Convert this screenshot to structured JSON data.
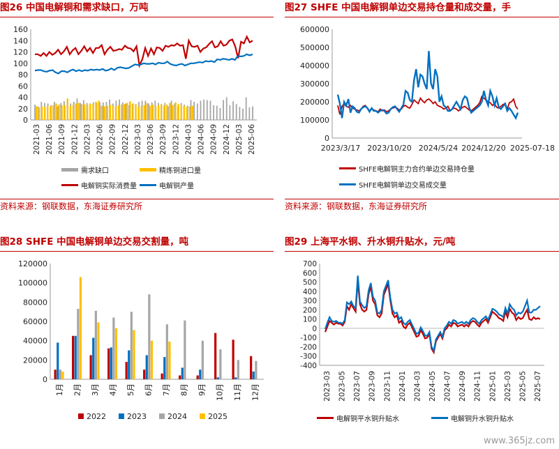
{
  "chart_data": [
    {
      "type": "bar+line",
      "title": "图26 中国电解铜和需求缺口，万吨",
      "source": "资料来源：钢联数据，东海证券研究所",
      "ylim": [
        0,
        160
      ],
      "yticks": [
        0,
        20,
        40,
        60,
        80,
        100,
        120,
        140,
        160
      ],
      "xlabels": [
        "2021-03",
        "2021-06",
        "2021-09",
        "2021-12",
        "2022-03",
        "2022-06",
        "2022-09",
        "2022-12",
        "2023-03",
        "2023-06",
        "2023-09",
        "2023-12",
        "2024-03",
        "2024-06",
        "2024-09",
        "2024-12",
        "2025-03",
        "2025-06"
      ],
      "series": [
        {
          "name": "需求缺口",
          "kind": "bar",
          "color": "#a6a6a6",
          "values": [
            27,
            24,
            32,
            30,
            29,
            26,
            32,
            24,
            30,
            33,
            30,
            29,
            32,
            38,
            30,
            35,
            30,
            29,
            31,
            30,
            31,
            31,
            32,
            36,
            29,
            34,
            36,
            31,
            29,
            26,
            29,
            27,
            32,
            34,
            34,
            29,
            31,
            34,
            30,
            24,
            30,
            24,
            34,
            29,
            24,
            30,
            27,
            25,
            35,
            32,
            29,
            34,
            36,
            35,
            34,
            26,
            25,
            21,
            35,
            40,
            26,
            33,
            28,
            23,
            20,
            40,
            22,
            24
          ]
        },
        {
          "name": "精炼铜进口量",
          "kind": "bar",
          "color": "#ffc000",
          "values": [
            24,
            22,
            24,
            23,
            25,
            24,
            26,
            29,
            27,
            26,
            26,
            38,
            24,
            27,
            29,
            30,
            28,
            27,
            27,
            29,
            28,
            32,
            34,
            25,
            24,
            25,
            27,
            25,
            24,
            26,
            27,
            28,
            30,
            33,
            29,
            28,
            23,
            25,
            26,
            30,
            25,
            27,
            24,
            26,
            28,
            25,
            27,
            30,
            26,
            31,
            28,
            27,
            25,
            23,
            24,
            25
          ]
        },
        {
          "name": "电解铜实际消费量",
          "kind": "line",
          "color": "#c00000",
          "values": [
            116,
            116,
            113,
            118,
            113,
            120,
            115,
            118,
            124,
            116,
            121,
            129,
            116,
            123,
            127,
            116,
            122,
            130,
            121,
            127,
            118,
            127,
            127,
            132,
            116,
            124,
            129,
            122,
            123,
            125,
            124,
            131,
            127,
            126,
            121,
            130,
            96,
            107,
            127,
            113,
            126,
            116,
            128,
            127,
            122,
            131,
            129,
            132,
            131,
            135,
            131,
            132,
            108,
            140,
            130,
            129,
            131,
            120,
            126,
            128,
            134,
            139,
            128,
            130,
            139,
            131,
            133,
            140,
            142,
            130,
            109,
            138,
            135,
            147,
            137,
            140
          ]
        },
        {
          "name": "电解铜产量",
          "kind": "line",
          "color": "#0070c0",
          "values": [
            87,
            88,
            88,
            86,
            85,
            87,
            88,
            84,
            82,
            86,
            86,
            84,
            87,
            89,
            86,
            88,
            86,
            88,
            87,
            89,
            88,
            89,
            88,
            90,
            87,
            88,
            91,
            88,
            92,
            93,
            92,
            91,
            92,
            95,
            98,
            97,
            98,
            100,
            99,
            99,
            100,
            98,
            101,
            100,
            100,
            103,
            99,
            97,
            96,
            98,
            99,
            96,
            98,
            100,
            100,
            101,
            102,
            101,
            104,
            103,
            104,
            102,
            107,
            106,
            108,
            107,
            106,
            108,
            106,
            113,
            112,
            113,
            116,
            114,
            116
          ]
        }
      ]
    },
    {
      "type": "line",
      "title": "图27 SHFE 中国电解铜单边交易持仓量和成交量，手",
      "source": "资料来源：钢联数据，东海证券研究所",
      "ylim": [
        0,
        600000
      ],
      "yticks": [
        0,
        100000,
        200000,
        300000,
        400000,
        500000,
        600000
      ],
      "xlabels": [
        "2023/3/17",
        "2023/10/20",
        "2024/5/24",
        "2024/12/20",
        "2025-07-18"
      ],
      "series": [
        {
          "name": "SHFE电解铜主力合约单边交易持仓量",
          "color": "#c00000",
          "values": [
            180000,
            130000,
            175000,
            190000,
            175000,
            170000,
            180000,
            165000,
            160000,
            155000,
            150000,
            160000,
            175000,
            180000,
            165000,
            150000,
            160000,
            155000,
            150000,
            145000,
            160000,
            150000,
            155000,
            145000,
            150000,
            160000,
            165000,
            170000,
            165000,
            155000,
            160000,
            175000,
            180000,
            170000,
            165000,
            185000,
            210000,
            200000,
            190000,
            220000,
            205000,
            195000,
            210000,
            215000,
            205000,
            190000,
            200000,
            180000,
            175000,
            170000,
            160000,
            165000,
            175000,
            150000,
            160000,
            165000,
            160000,
            150000,
            160000,
            170000,
            175000,
            165000,
            155000,
            150000,
            160000,
            170000,
            180000,
            195000,
            230000,
            220000,
            210000,
            200000,
            195000,
            180000,
            190000,
            170000,
            165000,
            175000,
            185000,
            190000,
            160000,
            195000,
            200000,
            215000,
            175000,
            160000
          ]
        },
        {
          "name": "SHFE电解铜单边交易成交量",
          "color": "#0070c0",
          "values": [
            240000,
            190000,
            110000,
            200000,
            180000,
            215000,
            140000,
            175000,
            165000,
            145000,
            140000,
            160000,
            170000,
            175000,
            165000,
            145000,
            165000,
            150000,
            150000,
            140000,
            150000,
            155000,
            150000,
            135000,
            140000,
            160000,
            170000,
            175000,
            160000,
            145000,
            165000,
            185000,
            260000,
            250000,
            210000,
            200000,
            320000,
            380000,
            280000,
            350000,
            340000,
            300000,
            270000,
            480000,
            300000,
            270000,
            380000,
            340000,
            200000,
            230000,
            180000,
            170000,
            150000,
            150000,
            160000,
            180000,
            200000,
            180000,
            160000,
            210000,
            230000,
            220000,
            170000,
            140000,
            150000,
            160000,
            170000,
            180000,
            200000,
            260000,
            210000,
            180000,
            260000,
            230000,
            180000,
            220000,
            170000,
            160000,
            175000,
            190000,
            150000,
            165000,
            150000,
            130000,
            110000,
            140000
          ]
        }
      ]
    },
    {
      "type": "bar",
      "title": "图28 SHFE 中国电解铜单边交易交割量，吨",
      "ylim": [
        0,
        120000
      ],
      "yticks": [
        0,
        20000,
        40000,
        60000,
        80000,
        100000,
        120000
      ],
      "categories": [
        "1月",
        "2月",
        "3月",
        "4月",
        "5月",
        "6月",
        "7月",
        "8月",
        "9月",
        "10月",
        "11月",
        "12月"
      ],
      "series": [
        {
          "name": "2022",
          "color": "#c00000",
          "values": [
            10000,
            45000,
            25000,
            32000,
            18000,
            10000,
            6000,
            4000,
            4000,
            48000,
            41000,
            24000
          ]
        },
        {
          "name": "2023",
          "color": "#0070c0",
          "values": [
            38000,
            45000,
            43000,
            33000,
            30000,
            25000,
            23000,
            12000,
            10000,
            2000,
            2000,
            8000
          ]
        },
        {
          "name": "2024",
          "color": "#a6a6a6",
          "values": [
            10000,
            73000,
            71000,
            64000,
            70000,
            88000,
            57000,
            61000,
            40000,
            31000,
            20000,
            19000
          ]
        },
        {
          "name": "2025",
          "color": "#ffc000",
          "values": [
            8000,
            106000,
            59000,
            53000,
            51000,
            40000,
            39000,
            null,
            null,
            null,
            null,
            null
          ]
        }
      ]
    },
    {
      "type": "line",
      "title": "图29 上海平水铜、升水铜升贴水，元/吨",
      "ylim": [
        -400,
        700
      ],
      "yticks": [
        -400,
        -300,
        -200,
        -100,
        0,
        100,
        200,
        300,
        400,
        500,
        600,
        700
      ],
      "xlabels": [
        "2023-03",
        "2023-05",
        "2023-07",
        "2023-09",
        "2023-11",
        "2024-01",
        "2024-03",
        "2024-05",
        "2024-07",
        "2024-09",
        "2024-11",
        "2025-01",
        "2025-03",
        "2025-05",
        "2025-07"
      ],
      "series": [
        {
          "name": "电解铜平水铜升贴水",
          "color": "#c00000",
          "values": [
            -40,
            20,
            80,
            60,
            40,
            60,
            50,
            50,
            30,
            70,
            240,
            200,
            260,
            220,
            180,
            510,
            260,
            200,
            180,
            200,
            370,
            450,
            300,
            260,
            140,
            120,
            160,
            360,
            420,
            480,
            300,
            160,
            120,
            140,
            60,
            80,
            20,
            0,
            40,
            60,
            10,
            -40,
            -90,
            -80,
            -20,
            -60,
            -110,
            -100,
            -60,
            -220,
            -260,
            -140,
            -100,
            -60,
            -110,
            -20,
            0,
            40,
            20,
            60,
            50,
            20,
            30,
            40,
            20,
            40,
            20,
            60,
            80,
            70,
            40,
            20,
            60,
            80,
            100,
            60,
            120,
            180,
            160,
            140,
            110,
            100,
            80,
            180,
            120,
            210,
            170,
            150,
            90,
            120,
            100,
            110,
            160,
            200,
            100,
            90,
            120,
            100,
            110,
            100
          ]
        },
        {
          "name": "电解铜升水铜升贴水",
          "color": "#0070c0",
          "values": [
            -10,
            60,
            120,
            80,
            70,
            80,
            60,
            60,
            50,
            90,
            280,
            260,
            290,
            240,
            220,
            570,
            290,
            250,
            220,
            240,
            410,
            490,
            340,
            300,
            170,
            160,
            200,
            400,
            460,
            520,
            330,
            200,
            160,
            170,
            100,
            120,
            60,
            40,
            70,
            90,
            40,
            -10,
            -60,
            -50,
            10,
            -30,
            -80,
            -80,
            -40,
            -200,
            -240,
            -120,
            -80,
            -40,
            -90,
            0,
            30,
            70,
            50,
            90,
            80,
            50,
            60,
            70,
            50,
            70,
            50,
            90,
            110,
            100,
            70,
            50,
            90,
            110,
            130,
            90,
            150,
            210,
            200,
            180,
            150,
            140,
            120,
            220,
            160,
            260,
            220,
            200,
            140,
            170,
            160,
            180,
            240,
            300,
            170,
            170,
            200,
            200,
            220,
            240
          ]
        }
      ]
    }
  ],
  "watermark": "www.365jz.com"
}
